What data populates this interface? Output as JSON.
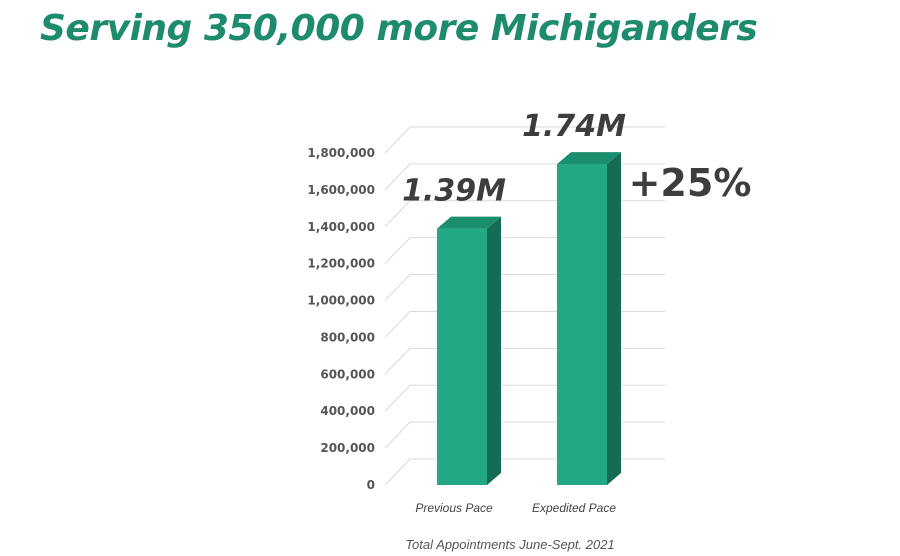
{
  "title": "Serving 350,000 more Michiganders",
  "colors": {
    "title": "#1e8a6e",
    "bar_front": "#22a884",
    "bar_side": "#166b54",
    "bar_top": "#1b8e6f",
    "grid": "#d9d9d9",
    "text": "#3d3d3d"
  },
  "chart_data": {
    "type": "bar",
    "categories": [
      "Previous Pace",
      "Expedited Pace"
    ],
    "values": [
      1390000,
      1740000
    ],
    "data_labels": [
      "1.39M",
      "1.74M"
    ],
    "ylim": [
      0,
      1800000
    ],
    "yticks": [
      0,
      200000,
      400000,
      600000,
      800000,
      1000000,
      1200000,
      1400000,
      1600000,
      1800000
    ],
    "ytick_labels": [
      "0",
      "200,000",
      "400,000",
      "600,000",
      "800,000",
      "1,000,000",
      "1,200,000",
      "1,400,000",
      "1,600,000",
      "1,800,000"
    ],
    "annotation": "+25%",
    "xlabel": "Total Appointments June-Sept. 2021",
    "grid": true,
    "style": "3d"
  }
}
